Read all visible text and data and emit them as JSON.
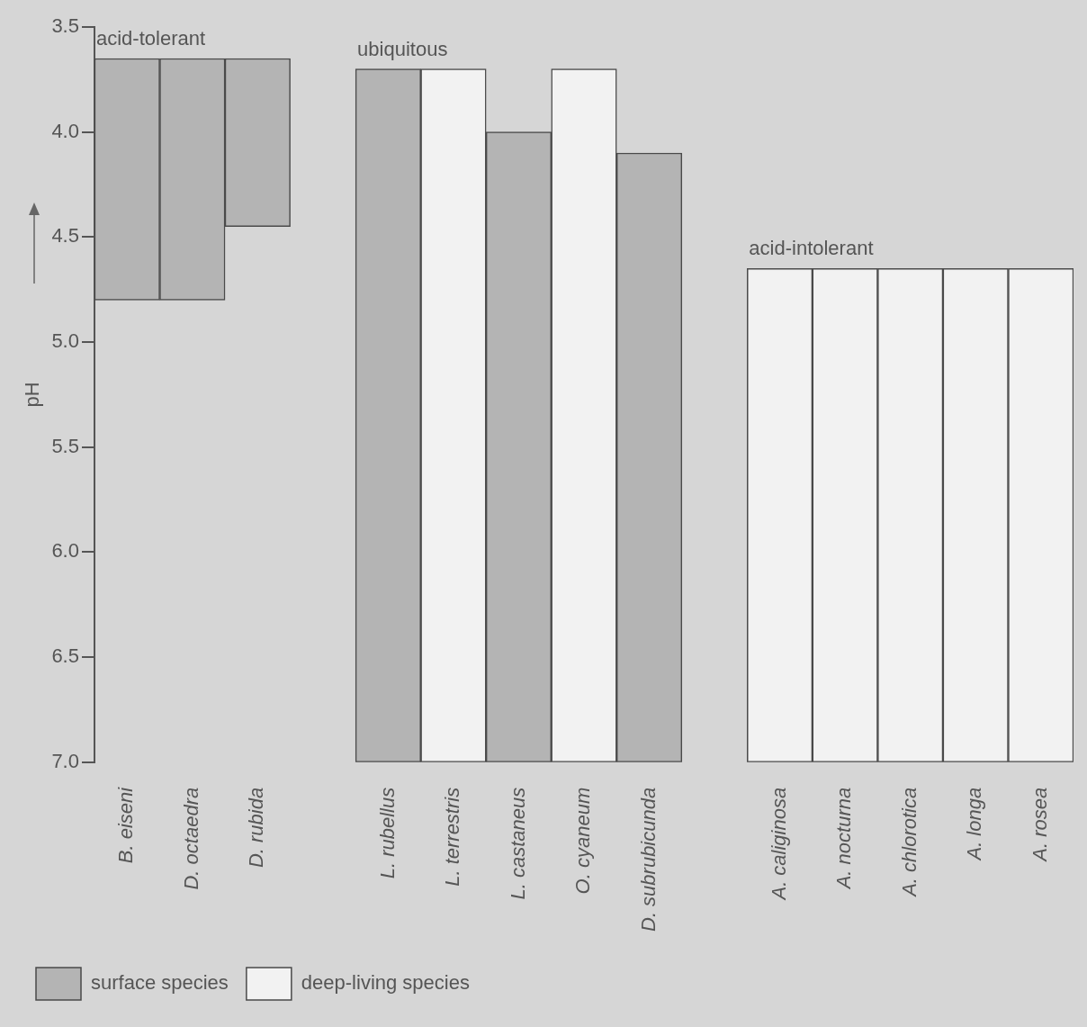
{
  "chart_data": {
    "type": "bar",
    "ylabel": "pH",
    "categories": [
      "B. eiseni",
      "D. octaedra",
      "D. rubida",
      null,
      "L. rubellus",
      "L. terrestris",
      "L. castaneus",
      "O. cyaneum",
      "D. subrubicunda",
      null,
      "A. caliginosa",
      "A. nocturna",
      "A. chlorotica",
      "A. longa",
      "A. rosea"
    ],
    "series": [
      {
        "name": "surface species",
        "color": "#b4b4b4",
        "base": [
          3.65,
          3.65,
          3.65,
          null,
          3.7,
          null,
          4.0,
          null,
          4.1,
          null,
          null,
          null,
          null,
          null,
          null
        ],
        "values": [
          1.15,
          1.15,
          0.8,
          null,
          3.3,
          null,
          3.0,
          null,
          2.9,
          null,
          null,
          null,
          null,
          null,
          null
        ]
      },
      {
        "name": "deep-living species",
        "color": "#f2f2f2",
        "base": [
          null,
          null,
          null,
          null,
          null,
          3.7,
          null,
          3.7,
          null,
          null,
          4.65,
          4.65,
          4.65,
          4.65,
          4.65
        ],
        "values": [
          null,
          null,
          null,
          null,
          null,
          3.3,
          null,
          3.3,
          null,
          null,
          2.35,
          2.35,
          2.35,
          2.35,
          2.35
        ]
      }
    ],
    "ylim": [
      7.0,
      3.5
    ],
    "yticks": [
      3.5,
      {
        "value": 4,
        "label": "4.0"
      },
      4.5,
      {
        "value": 5,
        "label": "5.0"
      },
      5.5,
      {
        "value": 6,
        "label": "6.0"
      },
      6.5,
      {
        "value": 7,
        "label": "7.0"
      }
    ],
    "annotations": [
      "acid-tolerant",
      "ubiquitous",
      "acid-intolerant"
    ],
    "grid": false,
    "legend": "bottom left"
  }
}
